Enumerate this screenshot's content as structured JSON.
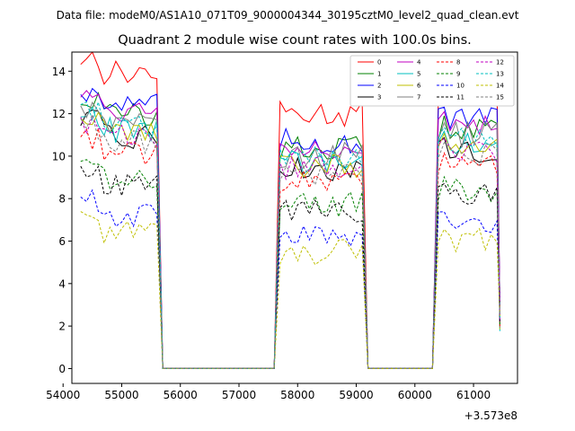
{
  "figure": {
    "suptitle": "Data file: modeM0/AS1A10_071T09_9000004344_30195cztM0_level2_quad_clean.evt"
  },
  "chart_data": {
    "type": "line",
    "title": "Quadrant 2 module wise count rates with 100.0s bins.",
    "xlabel": "",
    "ylabel": "",
    "x_offset_label": "+3.573e8",
    "xlim": [
      54150,
      61750
    ],
    "ylim": [
      -0.7,
      14.9
    ],
    "xticks": [
      54000,
      55000,
      56000,
      57000,
      58000,
      59000,
      60000,
      61000
    ],
    "yticks": [
      0,
      2,
      4,
      6,
      8,
      10,
      12,
      14
    ],
    "grid": false,
    "legend_position": "top-right",
    "segments": [
      {
        "t0": 54300,
        "n": 14
      },
      {
        "t0": 57700,
        "n": 15
      },
      {
        "t0": 60400,
        "n": 11
      }
    ],
    "zero_range": [
      55600,
      60400
    ],
    "series": [
      {
        "name": "0",
        "color": "#ff0000",
        "dash": false,
        "level": 12.9
      },
      {
        "name": "1",
        "color": "#008000",
        "dash": false,
        "level": 11.1
      },
      {
        "name": "2",
        "color": "#0000ff",
        "dash": false,
        "level": 11.5
      },
      {
        "name": "3",
        "color": "#000000",
        "dash": false,
        "level": 10.1
      },
      {
        "name": "4",
        "color": "#c000c0",
        "dash": false,
        "level": 11.3
      },
      {
        "name": "5",
        "color": "#00bfbf",
        "dash": false,
        "level": 10.4
      },
      {
        "name": "6",
        "color": "#bfbf00",
        "dash": false,
        "level": 10.3
      },
      {
        "name": "7",
        "color": "#808080",
        "dash": false,
        "level": 10.8
      },
      {
        "name": "8",
        "color": "#ff0000",
        "dash": true,
        "level": 9.4
      },
      {
        "name": "9",
        "color": "#008000",
        "dash": true,
        "level": 8.3
      },
      {
        "name": "10",
        "color": "#0000ff",
        "dash": true,
        "level": 6.7
      },
      {
        "name": "11",
        "color": "#000000",
        "dash": true,
        "level": 8.0
      },
      {
        "name": "12",
        "color": "#c000c0",
        "dash": true,
        "level": 10.1
      },
      {
        "name": "13",
        "color": "#00bfbf",
        "dash": true,
        "level": 10.6
      },
      {
        "name": "14",
        "color": "#bfbf00",
        "dash": true,
        "level": 5.9
      },
      {
        "name": "15",
        "color": "#808080",
        "dash": true,
        "level": 9.9
      }
    ]
  }
}
